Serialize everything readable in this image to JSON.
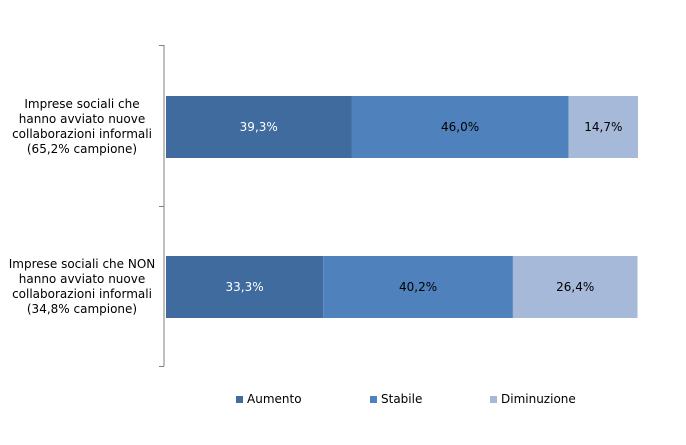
{
  "chart_data": {
    "type": "bar",
    "orientation": "horizontal",
    "stacked": "percent",
    "categories": [
      [
        "Imprese sociali che",
        "hanno avviato nuove",
        "collaborazioni informali",
        "(65,2% campione)"
      ],
      [
        "Imprese sociali che NON",
        "hanno avviato nuove",
        "collaborazioni informali",
        "(34,8% campione)"
      ]
    ],
    "series": [
      {
        "name": "Aumento",
        "values": [
          39.3,
          33.3
        ],
        "labels": [
          "39,3%",
          "33,3%"
        ],
        "color": "#3F6B9F"
      },
      {
        "name": "Stabile",
        "values": [
          46.0,
          40.2
        ],
        "labels": [
          "46,0%",
          "40,2%"
        ],
        "color": "#4F81BD"
      },
      {
        "name": "Diminuzione",
        "values": [
          14.7,
          26.4
        ],
        "labels": [
          "14,7%",
          "26,4%"
        ],
        "color": "#A7B9D9"
      }
    ],
    "xlim": [
      0,
      100
    ],
    "grid": false,
    "legend_position": "bottom",
    "label_colors": [
      "#ffffff",
      "#000000",
      "#000000"
    ]
  }
}
